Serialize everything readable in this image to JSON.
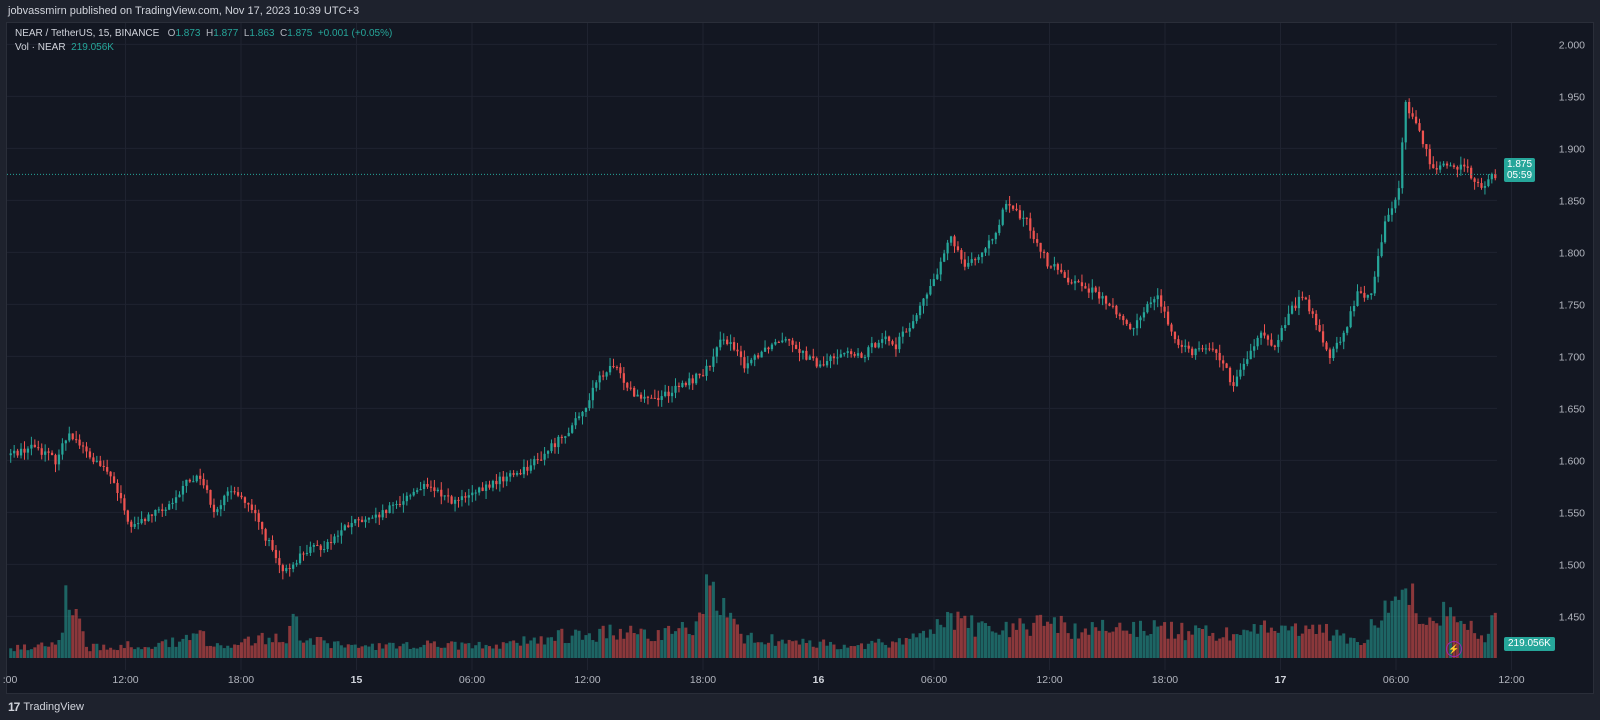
{
  "header": {
    "publisher_line": "jobvassmirn published on TradingView.com, Nov 17, 2023 10:39 UTC+3"
  },
  "legend": {
    "symbol": "NEAR / TetherUS, 15, BINANCE",
    "o_label": "O",
    "o_value": "1.873",
    "h_label": "H",
    "h_value": "1.877",
    "l_label": "L",
    "l_value": "1.863",
    "c_label": "C",
    "c_value": "1.875",
    "change": "+0.001 (+0.05%)",
    "vol_label": "Vol · NEAR",
    "vol_value": "219.056K"
  },
  "last_price": {
    "price": "1.875",
    "countdown": "05:59"
  },
  "volume_tag": "219.056K",
  "footer": {
    "brand": "TradingView"
  },
  "colors": {
    "up": "#26a69a",
    "down": "#ef5350",
    "background": "#131722",
    "grid": "#1f2330"
  },
  "chart_data": {
    "type": "candlestick",
    "symbol": "NEAR / TetherUS",
    "interval": "15",
    "exchange": "BINANCE",
    "y_axis": {
      "range": [
        1.41,
        2.01
      ],
      "ticks": [
        "2.000",
        "1.950",
        "1.900",
        "1.850",
        "1.800",
        "1.750",
        "1.700",
        "1.650",
        "1.600",
        "1.550",
        "1.500",
        "1.450"
      ]
    },
    "x_axis": {
      "ticks": [
        ":00",
        "12:00",
        "18:00",
        "15",
        "06:00",
        "12:00",
        "18:00",
        "16",
        "06:00",
        "12:00",
        "18:00",
        "17",
        "06:00",
        "12:00"
      ],
      "bold_ticks": [
        "15",
        "16",
        "17"
      ]
    },
    "price_path": [
      [
        0,
        1.605
      ],
      [
        8,
        1.614
      ],
      [
        14,
        1.6
      ],
      [
        18,
        1.628
      ],
      [
        24,
        1.603
      ],
      [
        30,
        1.585
      ],
      [
        36,
        1.535
      ],
      [
        42,
        1.548
      ],
      [
        48,
        1.556
      ],
      [
        52,
        1.58
      ],
      [
        56,
        1.585
      ],
      [
        60,
        1.553
      ],
      [
        66,
        1.573
      ],
      [
        72,
        1.546
      ],
      [
        76,
        1.52
      ],
      [
        80,
        1.49
      ],
      [
        86,
        1.512
      ],
      [
        92,
        1.518
      ],
      [
        100,
        1.54
      ],
      [
        106,
        1.542
      ],
      [
        112,
        1.555
      ],
      [
        120,
        1.575
      ],
      [
        126,
        1.568
      ],
      [
        130,
        1.56
      ],
      [
        136,
        1.568
      ],
      [
        142,
        1.58
      ],
      [
        148,
        1.588
      ],
      [
        154,
        1.6
      ],
      [
        160,
        1.62
      ],
      [
        166,
        1.64
      ],
      [
        172,
        1.68
      ],
      [
        176,
        1.69
      ],
      [
        182,
        1.665
      ],
      [
        188,
        1.66
      ],
      [
        194,
        1.668
      ],
      [
        200,
        1.68
      ],
      [
        204,
        1.69
      ],
      [
        208,
        1.72
      ],
      [
        214,
        1.692
      ],
      [
        220,
        1.708
      ],
      [
        226,
        1.72
      ],
      [
        232,
        1.7
      ],
      [
        236,
        1.69
      ],
      [
        242,
        1.705
      ],
      [
        248,
        1.698
      ],
      [
        254,
        1.72
      ],
      [
        258,
        1.71
      ],
      [
        264,
        1.74
      ],
      [
        270,
        1.78
      ],
      [
        274,
        1.815
      ],
      [
        278,
        1.79
      ],
      [
        284,
        1.8
      ],
      [
        290,
        1.845
      ],
      [
        296,
        1.83
      ],
      [
        302,
        1.79
      ],
      [
        308,
        1.775
      ],
      [
        314,
        1.765
      ],
      [
        320,
        1.75
      ],
      [
        326,
        1.725
      ],
      [
        330,
        1.745
      ],
      [
        334,
        1.76
      ],
      [
        338,
        1.72
      ],
      [
        344,
        1.705
      ],
      [
        348,
        1.71
      ],
      [
        352,
        1.7
      ],
      [
        356,
        1.67
      ],
      [
        360,
        1.7
      ],
      [
        364,
        1.72
      ],
      [
        368,
        1.71
      ],
      [
        372,
        1.74
      ],
      [
        376,
        1.76
      ],
      [
        380,
        1.73
      ],
      [
        384,
        1.7
      ],
      [
        388,
        1.72
      ],
      [
        392,
        1.76
      ],
      [
        396,
        1.76
      ],
      [
        400,
        1.83
      ],
      [
        404,
        1.86
      ],
      [
        406,
        1.945
      ],
      [
        410,
        1.915
      ],
      [
        414,
        1.88
      ],
      [
        420,
        1.885
      ],
      [
        424,
        1.878
      ],
      [
        428,
        1.86
      ],
      [
        431,
        1.875
      ]
    ],
    "volume_path": [
      [
        0,
        0.05
      ],
      [
        14,
        0.1
      ],
      [
        16,
        0.32
      ],
      [
        18,
        0.28
      ],
      [
        20,
        0.35
      ],
      [
        22,
        0.06
      ],
      [
        40,
        0.08
      ],
      [
        50,
        0.1
      ],
      [
        54,
        0.22
      ],
      [
        58,
        0.07
      ],
      [
        80,
        0.13
      ],
      [
        82,
        0.3
      ],
      [
        84,
        0.12
      ],
      [
        100,
        0.06
      ],
      [
        120,
        0.08
      ],
      [
        140,
        0.07
      ],
      [
        150,
        0.1
      ],
      [
        160,
        0.13
      ],
      [
        175,
        0.15
      ],
      [
        190,
        0.14
      ],
      [
        200,
        0.2
      ],
      [
        202,
        0.38
      ],
      [
        206,
        0.3
      ],
      [
        212,
        0.12
      ],
      [
        230,
        0.09
      ],
      [
        245,
        0.07
      ],
      [
        260,
        0.1
      ],
      [
        270,
        0.2
      ],
      [
        274,
        0.25
      ],
      [
        280,
        0.18
      ],
      [
        290,
        0.16
      ],
      [
        300,
        0.22
      ],
      [
        310,
        0.16
      ],
      [
        320,
        0.19
      ],
      [
        330,
        0.18
      ],
      [
        340,
        0.16
      ],
      [
        350,
        0.14
      ],
      [
        360,
        0.18
      ],
      [
        370,
        0.18
      ],
      [
        380,
        0.16
      ],
      [
        392,
        0.1
      ],
      [
        400,
        0.3
      ],
      [
        402,
        0.28
      ],
      [
        404,
        0.47
      ],
      [
        406,
        0.38
      ],
      [
        410,
        0.25
      ],
      [
        414,
        0.22
      ],
      [
        418,
        0.28
      ],
      [
        424,
        0.2
      ],
      [
        428,
        0.12
      ],
      [
        431,
        0.28
      ]
    ],
    "volume_bar_range": [
      0,
      1
    ],
    "last_price_line": 1.875
  }
}
